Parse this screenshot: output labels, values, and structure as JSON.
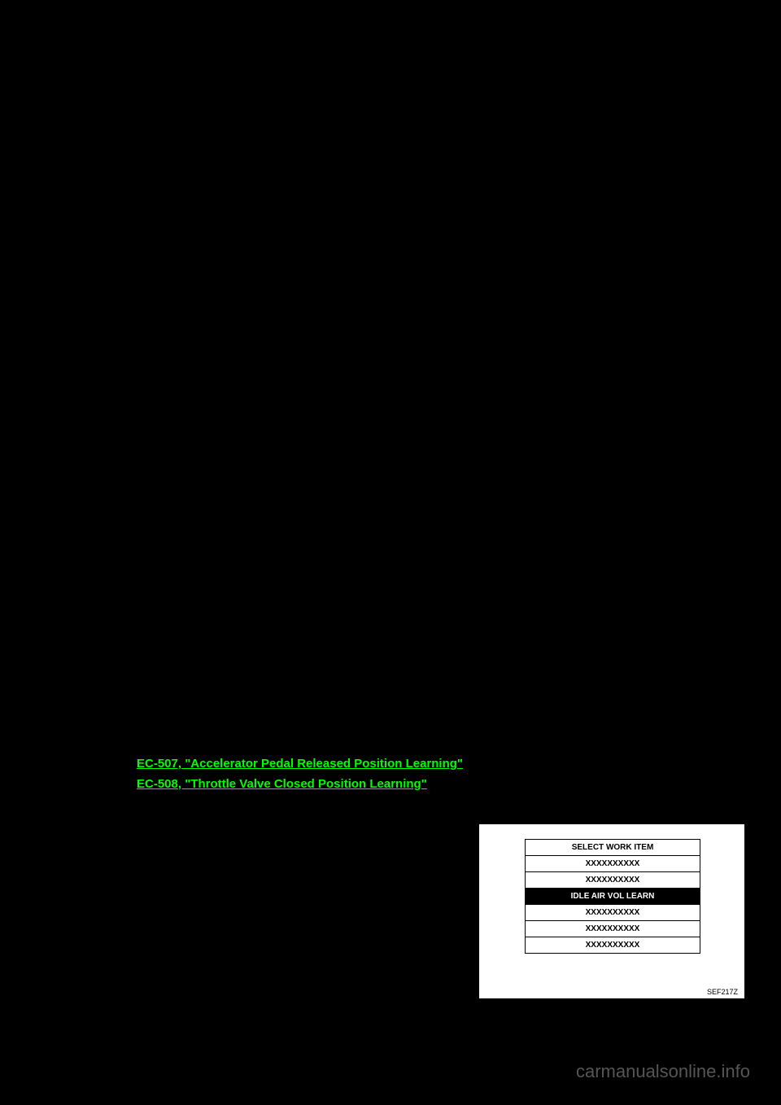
{
  "links": {
    "link1": "EC-507, \"Accelerator Pedal Released Position Learning\"",
    "link2": "EC-508, \"Throttle Valve Closed Position Learning\""
  },
  "diagram": {
    "header": "SELECT WORK ITEM",
    "items": [
      {
        "label": "XXXXXXXXXX",
        "selected": false
      },
      {
        "label": "XXXXXXXXXX",
        "selected": false
      },
      {
        "label": "IDLE AIR VOL LEARN",
        "selected": true
      },
      {
        "label": "XXXXXXXXXX",
        "selected": false
      },
      {
        "label": "XXXXXXXXXX",
        "selected": false
      },
      {
        "label": "XXXXXXXXXX",
        "selected": false
      }
    ],
    "ref": "SEF217Z",
    "background_color": "#ffffff",
    "border_color": "#000000",
    "selected_bg": "#000000",
    "selected_fg": "#ffffff"
  },
  "watermark": "carmanualsonline.info",
  "colors": {
    "page_bg": "#000000",
    "link_color": "#00ff00",
    "watermark_color": "#555555"
  }
}
